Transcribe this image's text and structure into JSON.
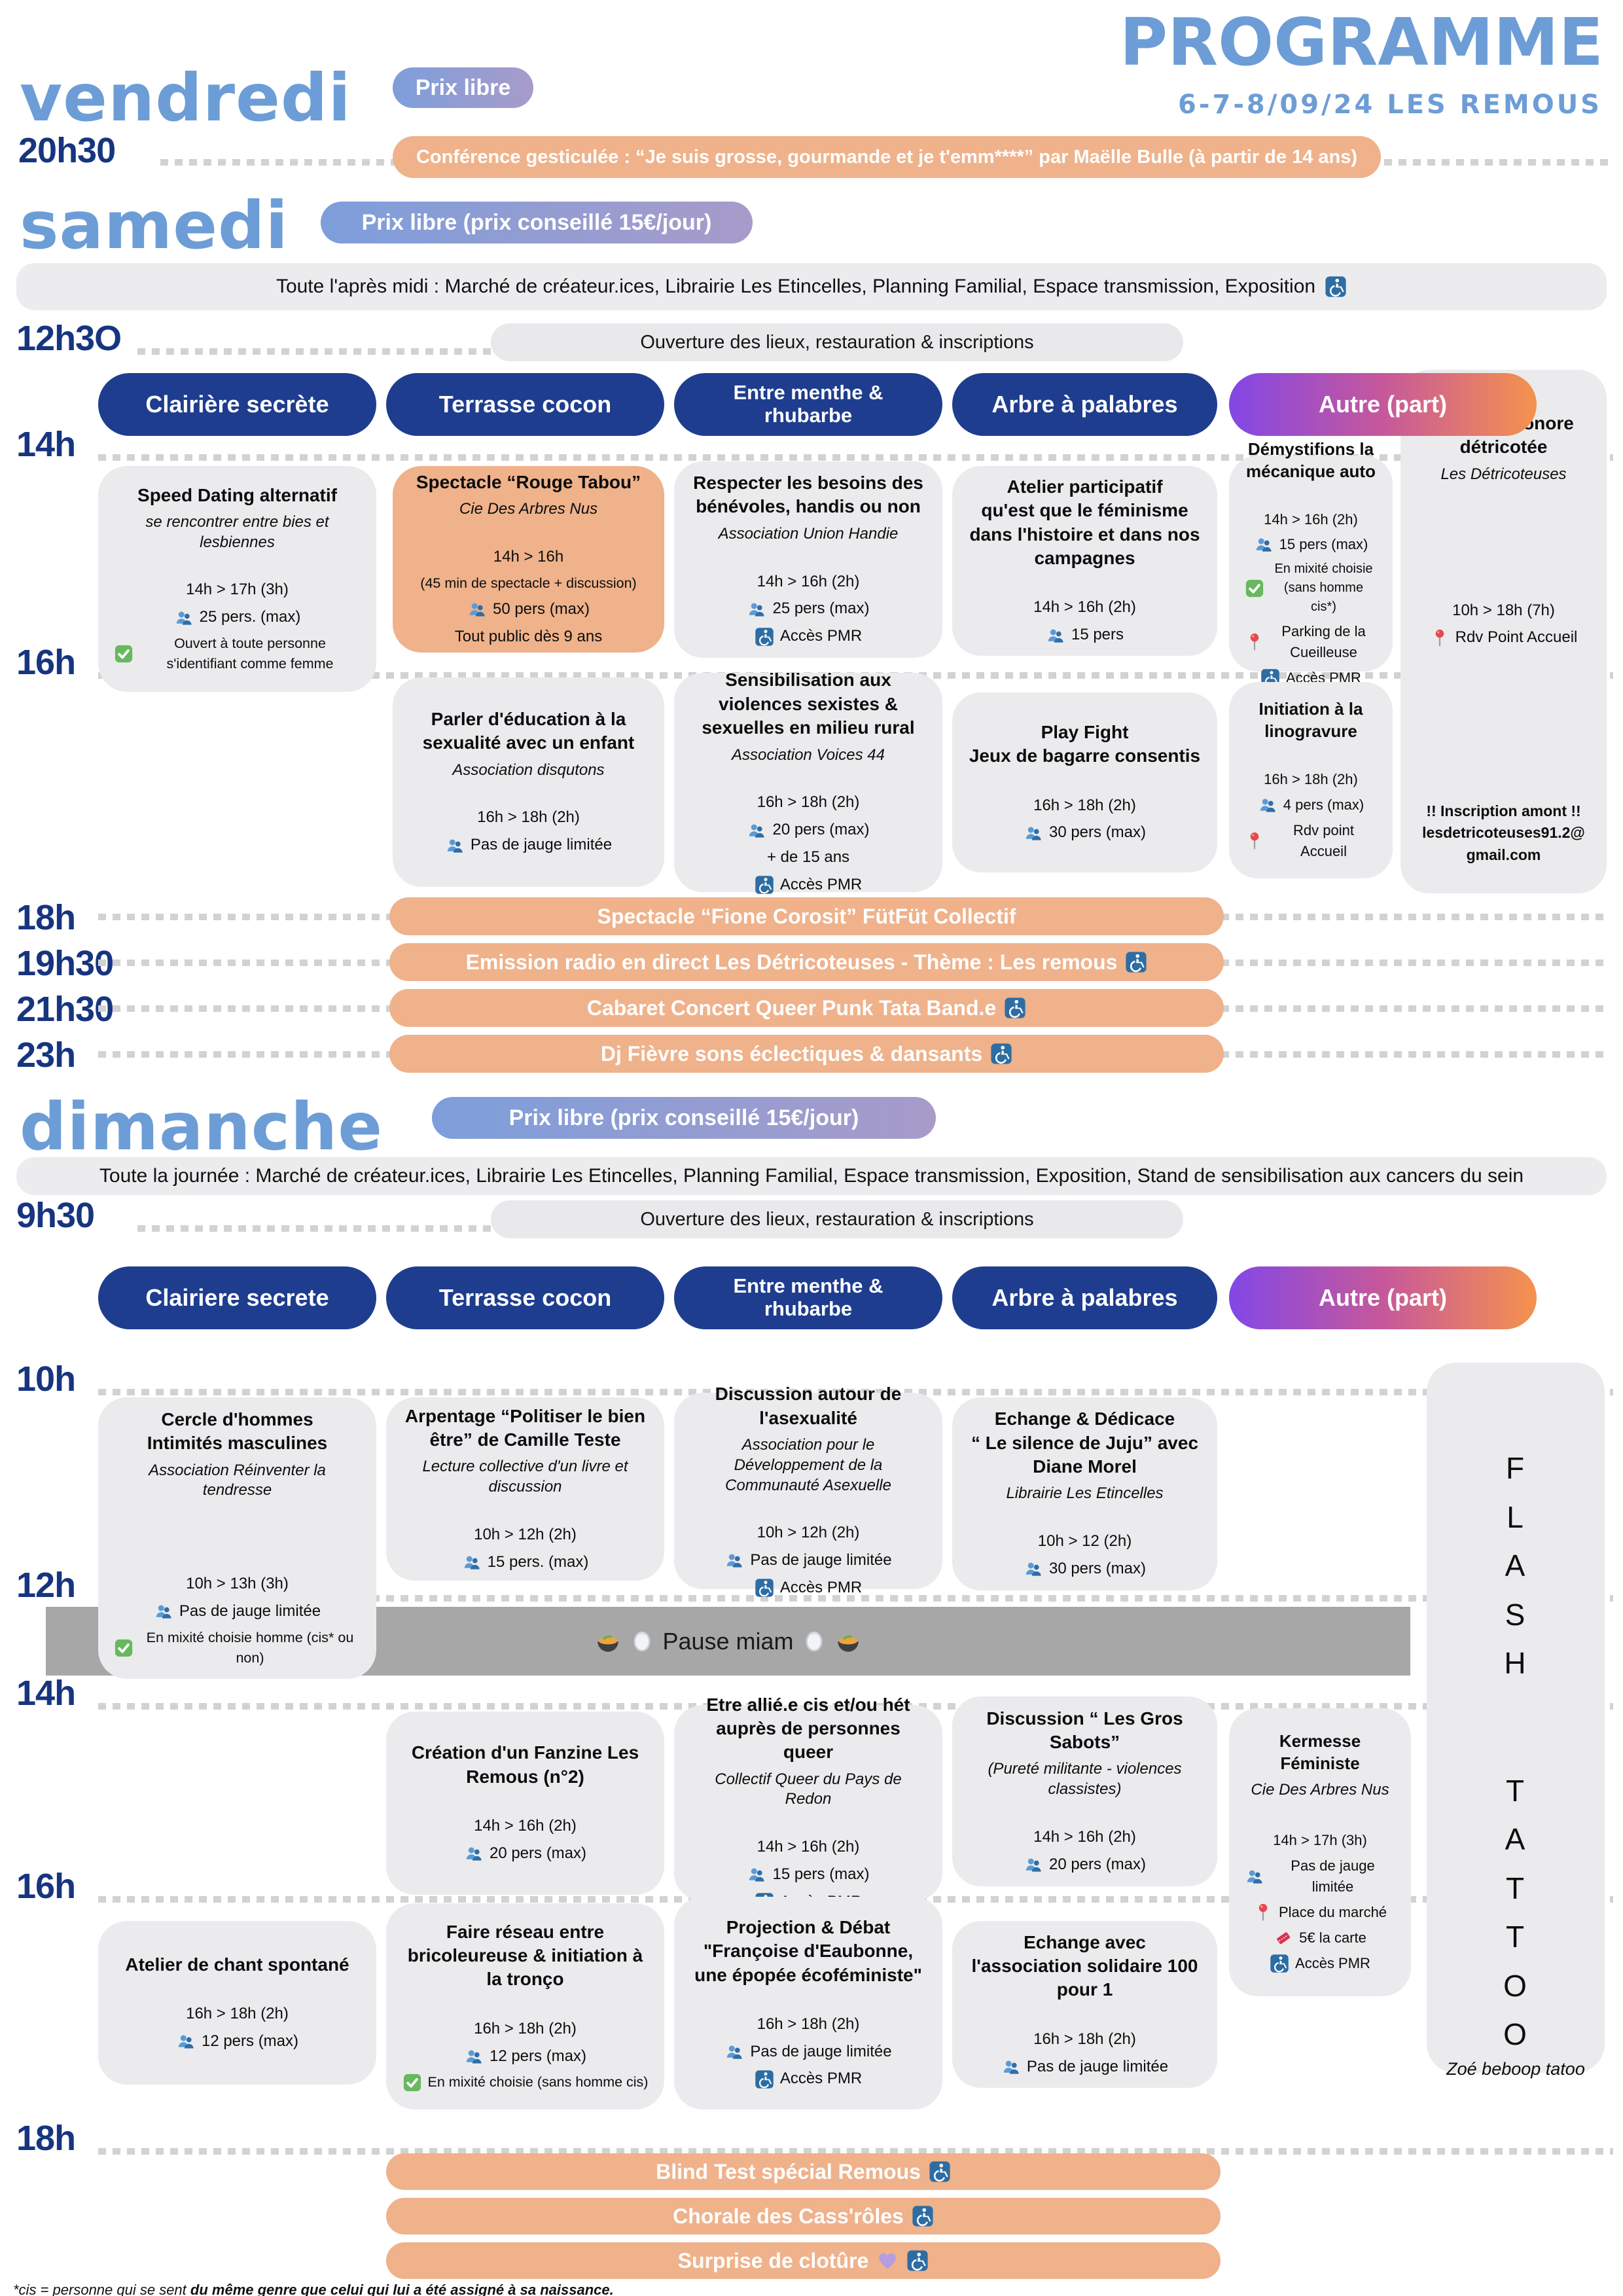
{
  "page": {
    "background": "#ffffff",
    "accent_blue": "#6d9dd6",
    "navy": "#1e3d8f",
    "peach": "#efb28b",
    "card_gray": "#ebebed",
    "pause_gray": "#a7a7a7"
  },
  "header": {
    "title": "PROGRAMME",
    "subtitle": "6-7-8/09/24 LES REMOUS"
  },
  "vendredi": {
    "day": "vendredi",
    "price": "Prix libre",
    "time": "20h30",
    "event": "Conférence gesticulée : “Je suis grosse, gourmande et je t'emm****” par Maëlle Bulle (à partir de 14 ans)"
  },
  "samedi": {
    "day": "samedi",
    "price": "Prix libre (prix conseillé 15€/jour)",
    "allday": "Toute l'après midi : Marché de créateur.ices, Librairie Les Etincelles, Planning Familial, Espace transmission, Exposition",
    "opening_time": "12h3O",
    "opening": "Ouverture des lieux, restauration & inscriptions",
    "columns": [
      "Clairière secrète",
      "Terrasse cocon",
      "Entre menthe &\nrhubarbe",
      "Arbre à palabres",
      "Autre (part)"
    ],
    "times": [
      "14h",
      "16h"
    ],
    "cards": [
      {
        "id": "s_speed",
        "title": "Speed Dating alternatif",
        "sub": "se rencontrer entre bies et lesbiennes",
        "lines": [
          {
            "tx": "14h > 17h (3h)"
          },
          {
            "ic": "people",
            "tx": "25 pers. (max)"
          },
          {
            "ic": "check",
            "tx": "Ouvert à toute personne s'identifiant comme femme"
          }
        ]
      },
      {
        "id": "s_tabou",
        "title": "Spectacle “Rouge Tabou”",
        "sub": "Cie Des Arbres Nus",
        "lines": [
          {
            "tx": "14h > 16h"
          },
          {
            "tx": "(45 min de spectacle + discussion)"
          },
          {
            "ic": "people",
            "tx": "50 pers (max)"
          },
          {
            "tx": "Tout public dès 9 ans"
          }
        ]
      },
      {
        "id": "s_besoins",
        "title": "Respecter les besoins des bénévoles, handis ou non",
        "sub": "Association Union Handie",
        "lines": [
          {
            "tx": "14h > 16h (2h)"
          },
          {
            "ic": "people",
            "tx": "25 pers (max)"
          },
          {
            "ic": "pmr",
            "tx": "Accès PMR"
          }
        ]
      },
      {
        "id": "s_feminisme",
        "title": "Atelier participatif\nqu'est que le féminisme dans l'histoire et dans nos campagnes",
        "lines": [
          {
            "tx": "14h > 16h (2h)"
          },
          {
            "ic": "people",
            "tx": "15 pers"
          }
        ]
      },
      {
        "id": "s_meca",
        "title": "Démystifions la mécanique auto",
        "lines": [
          {
            "tx": "14h > 16h (2h)"
          },
          {
            "ic": "people",
            "tx": "15 pers (max)"
          },
          {
            "ic": "check",
            "tx": "En mixité choisie (sans homme cis*)"
          },
          {
            "ic": "pin",
            "tx": "Parking de la Cueilleuse"
          },
          {
            "ic": "pmr",
            "tx": "Accès PMR"
          }
        ]
      },
      {
        "id": "s_sonore",
        "title": "Création sonore détricotée",
        "sub": "Les Détricoteuses",
        "lines": [
          {
            "tx": "10h > 18h (7h)"
          },
          {
            "ic": "pin",
            "tx": "Rdv Point Accueil"
          }
        ],
        "note": "!! Inscription amont !! lesdetricoteuses91.2@ gmail.com"
      },
      {
        "id": "s_educ",
        "title": "Parler d'éducation à la sexualité avec un enfant",
        "sub": "Association disqutons",
        "lines": [
          {
            "tx": "16h > 18h (2h)"
          },
          {
            "ic": "people",
            "tx": "Pas de jauge limitée"
          }
        ]
      },
      {
        "id": "s_sensi",
        "title": "Sensibilisation aux violences sexistes & sexuelles en milieu rural",
        "sub": "Association Voices 44",
        "lines": [
          {
            "tx": "16h > 18h (2h)"
          },
          {
            "ic": "people",
            "tx": "20 pers (max)"
          },
          {
            "tx": "+ de 15 ans"
          },
          {
            "ic": "pmr",
            "tx": "Accès PMR"
          }
        ]
      },
      {
        "id": "s_playfight",
        "title": "Play Fight\nJeux de bagarre consentis",
        "lines": [
          {
            "tx": "16h > 18h (2h)"
          },
          {
            "ic": "people",
            "tx": "30 pers (max)"
          }
        ]
      },
      {
        "id": "s_lino",
        "title": "Initiation à la linogravure",
        "lines": [
          {
            "tx": "16h > 18h (2h)"
          },
          {
            "ic": "people",
            "tx": "4 pers (max)"
          },
          {
            "ic": "pin",
            "tx": "Rdv point Accueil"
          }
        ]
      }
    ],
    "evening": [
      {
        "time": "18h",
        "label": "Spectacle “Fione Corosit” FütFüt Collectif",
        "pmr": false
      },
      {
        "time": "19h30",
        "label": "Emission radio en direct Les Détricoteuses - Thème : Les remous",
        "pmr": true
      },
      {
        "time": "21h30",
        "label": "Cabaret Concert Queer Punk Tata Band.e",
        "pmr": true
      },
      {
        "time": "23h",
        "label": "Dj Fièvre sons éclectiques & dansants",
        "pmr": true
      }
    ]
  },
  "dimanche": {
    "day": "dimanche",
    "price": "Prix libre (prix conseillé 15€/jour)",
    "allday": "Toute la journée : Marché de créateur.ices, Librairie Les Etincelles, Planning Familial, Espace transmission, Exposition, Stand de sensibilisation aux cancers du sein",
    "opening_time": "9h30",
    "opening": "Ouverture des lieux, restauration & inscriptions",
    "columns": [
      "Clairiere secrete",
      "Terrasse cocon",
      "Entre menthe &\nrhubarbe",
      "Arbre à palabres",
      "Autre (part)"
    ],
    "times": [
      "10h",
      "12h",
      "14h",
      "16h",
      "18h"
    ],
    "pause": "Pause miam",
    "cards": [
      {
        "id": "d_cercle",
        "title": "Cercle d'hommes\nIntimités masculines",
        "sub": "Association Réinventer la tendresse",
        "lines": [
          {
            "tx": "10h > 13h (3h)"
          },
          {
            "ic": "people",
            "tx": "Pas de jauge limitée"
          },
          {
            "ic": "check",
            "tx": "En mixité choisie homme (cis* ou non)"
          }
        ]
      },
      {
        "id": "d_arpentage",
        "title": "Arpentage “Politiser le bien être” de Camille Teste",
        "sub": "Lecture collective d'un livre et discussion",
        "lines": [
          {
            "tx": "10h > 12h (2h)"
          },
          {
            "ic": "people",
            "tx": "15 pers. (max)"
          }
        ]
      },
      {
        "id": "d_asex",
        "title": "Discussion autour de l'asexualité",
        "sub": "Association pour le Développement de la Communauté Asexuelle",
        "lines": [
          {
            "tx": "10h > 12h (2h)"
          },
          {
            "ic": "people",
            "tx": "Pas de jauge limitée"
          },
          {
            "ic": "pmr",
            "tx": "Accès PMR"
          }
        ]
      },
      {
        "id": "d_juju",
        "title": "Echange & Dédicace\n“ Le silence de Juju” avec Diane Morel",
        "sub": "Librairie Les Etincelles",
        "lines": [
          {
            "tx": "10h > 12 (2h)"
          },
          {
            "ic": "people",
            "tx": "30 pers (max)"
          }
        ]
      },
      {
        "id": "d_flash",
        "vertical": [
          "FLASH",
          "TATTOO"
        ],
        "note": "Zoé beboop tatoo"
      },
      {
        "id": "d_fanzine",
        "title": "Création d'un Fanzine Les Remous (n°2)",
        "lines": [
          {
            "tx": "14h > 16h (2h)"
          },
          {
            "ic": "people",
            "tx": "20 pers (max)"
          }
        ]
      },
      {
        "id": "d_allie",
        "title": "Etre allié.e cis et/ou hét auprès de personnes queer",
        "sub": "Collectif Queer du Pays de Redon",
        "lines": [
          {
            "tx": "14h > 16h (2h)"
          },
          {
            "ic": "people",
            "tx": "15 pers (max)"
          },
          {
            "ic": "pmr",
            "tx": "Accès PMR"
          }
        ]
      },
      {
        "id": "d_sabots",
        "title": "Discussion “ Les Gros Sabots”",
        "sub": "(Pureté militante - violences classistes)",
        "lines": [
          {
            "tx": "14h > 16h (2h)"
          },
          {
            "ic": "people",
            "tx": "20 pers (max)"
          }
        ]
      },
      {
        "id": "d_kermesse",
        "title": "Kermesse Féministe",
        "sub": "Cie Des Arbres Nus",
        "lines": [
          {
            "tx": "14h > 17h (3h)"
          },
          {
            "ic": "people",
            "tx": "Pas de jauge limitée"
          },
          {
            "ic": "pin",
            "tx": "Place du marché"
          },
          {
            "ic": "ticket",
            "tx": "5€ la carte"
          },
          {
            "ic": "pmr",
            "tx": "Accès PMR"
          }
        ]
      },
      {
        "id": "d_chant",
        "title": "Atelier de chant spontané",
        "lines": [
          {
            "tx": "16h > 18h (2h)"
          },
          {
            "ic": "people",
            "tx": "12 pers (max)"
          }
        ]
      },
      {
        "id": "d_reseau",
        "title": "Faire réseau entre bricoleureuse & initiation à la tronço",
        "lines": [
          {
            "tx": "16h > 18h (2h)"
          },
          {
            "ic": "people",
            "tx": "12 pers (max)"
          },
          {
            "ic": "check",
            "tx": "En mixité choisie (sans homme cis)"
          }
        ]
      },
      {
        "id": "d_projection",
        "title": "Projection & Débat\n\"Françoise d'Eaubonne, une épopée écoféministe\"",
        "lines": [
          {
            "tx": "16h > 18h (2h)"
          },
          {
            "ic": "people",
            "tx": "Pas de jauge limitée"
          },
          {
            "ic": "pmr",
            "tx": "Accès PMR"
          }
        ]
      },
      {
        "id": "d_solidaire",
        "title": "Echange avec l'association solidaire 100 pour 1",
        "lines": [
          {
            "tx": "16h > 18h (2h)"
          },
          {
            "ic": "people",
            "tx": "Pas de jauge limitée"
          }
        ]
      }
    ],
    "closing": [
      {
        "label": "Blind Test spécial Remous",
        "pmr": true
      },
      {
        "label": "Chorale des Cass'rôles",
        "pmr": true
      },
      {
        "label": "Surprise de clotûre",
        "heart": true,
        "pmr": true
      }
    ]
  },
  "footnote": {
    "prefix": "*cis = ",
    "normal": " personne qui se sent ",
    "bold": "du même genre que celui qui lui a été assigné à sa naissance."
  }
}
